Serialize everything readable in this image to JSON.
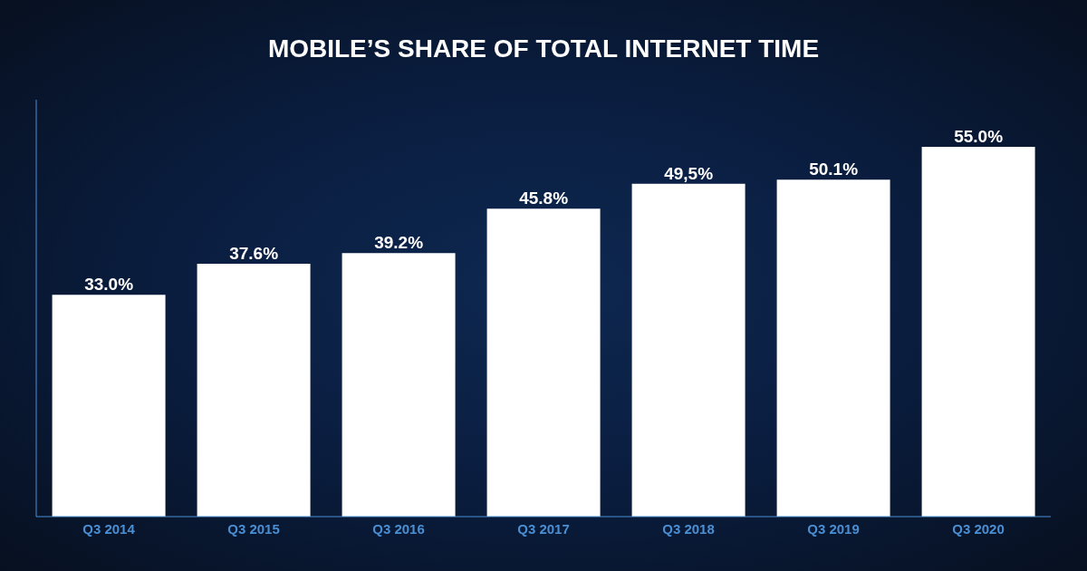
{
  "chart_data": {
    "type": "bar",
    "title": "MOBILE’S SHARE OF TOTAL INTERNET TIME",
    "categories": [
      "Q3 2014",
      "Q3 2015",
      "Q3 2016",
      "Q3 2017",
      "Q3 2018",
      "Q3 2019",
      "Q3 2020"
    ],
    "values": [
      33.0,
      37.6,
      39.2,
      45.8,
      49.5,
      50.1,
      55.0
    ],
    "value_labels": [
      "33.0%",
      "37.6%",
      "39.2%",
      "45.8%",
      "49,5%",
      "50.1%",
      "55.0%"
    ],
    "data_labels": true,
    "color": "#ffffff",
    "ylim": [
      0,
      62
    ],
    "grid": false,
    "tick_labels": "x"
  }
}
